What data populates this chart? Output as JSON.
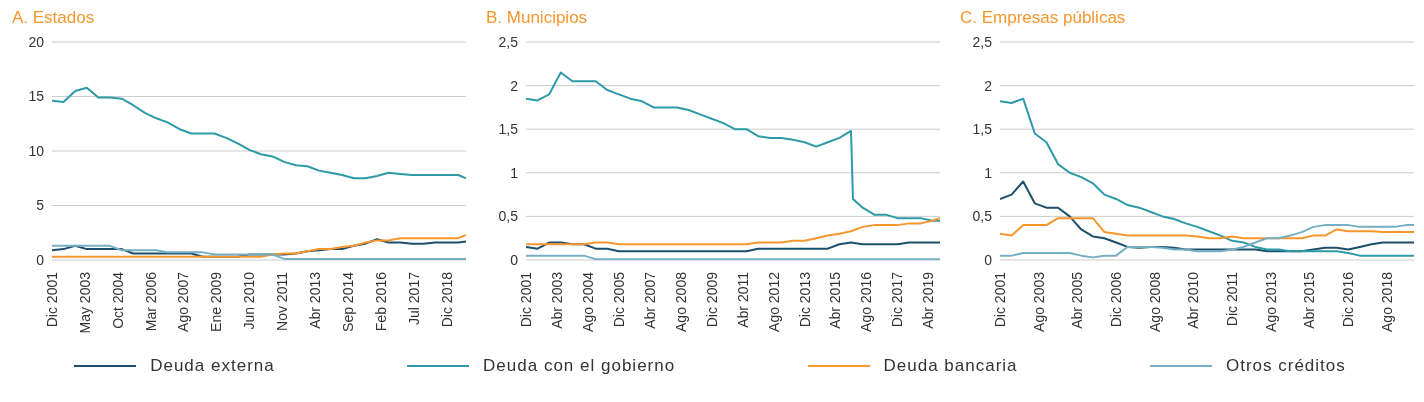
{
  "chart_data": [
    {
      "type": "line",
      "title": "A. Estados",
      "legend": "bottom",
      "grid": "y",
      "marker": "none",
      "line_style": "solid",
      "x": [
        "2001-12",
        "2002-06",
        "2002-12",
        "2003-06",
        "2003-12",
        "2004-06",
        "2004-12",
        "2005-06",
        "2005-12",
        "2006-06",
        "2006-12",
        "2007-06",
        "2007-12",
        "2008-06",
        "2008-12",
        "2009-06",
        "2009-12",
        "2010-06",
        "2010-12",
        "2011-06",
        "2011-12",
        "2012-06",
        "2012-12",
        "2013-06",
        "2013-12",
        "2014-06",
        "2014-12",
        "2015-06",
        "2015-12",
        "2016-06",
        "2016-12",
        "2017-06",
        "2017-12",
        "2018-06",
        "2018-12",
        "2019-06",
        "2019-10"
      ],
      "xlim": [
        "2001-12",
        "2019-10"
      ],
      "xticks": [
        {
          "value": "2001-12",
          "label": "Dic 2001"
        },
        {
          "value": "2003-05",
          "label": "May 2003"
        },
        {
          "value": "2004-10",
          "label": "Oct 2004"
        },
        {
          "value": "2006-03",
          "label": "Mar 2006"
        },
        {
          "value": "2007-08",
          "label": "Ago 2007"
        },
        {
          "value": "2009-01",
          "label": "Ene 2009"
        },
        {
          "value": "2010-06",
          "label": "Jun 2010"
        },
        {
          "value": "2011-11",
          "label": "Nov 2011"
        },
        {
          "value": "2013-04",
          "label": "Abr 2013"
        },
        {
          "value": "2014-09",
          "label": "Sep 2014"
        },
        {
          "value": "2016-02",
          "label": "Feb 2016"
        },
        {
          "value": "2017-07",
          "label": "Jul 2017"
        },
        {
          "value": "2018-12",
          "label": "Dic 2018"
        }
      ],
      "ylim": [
        0,
        20
      ],
      "yticks": [
        0,
        5,
        10,
        15,
        20
      ],
      "series": [
        {
          "name": "Deuda externa",
          "color": "#1b4f6b",
          "values": [
            0.9,
            1.0,
            1.3,
            1.0,
            1.0,
            1.0,
            1.0,
            0.6,
            0.6,
            0.6,
            0.6,
            0.6,
            0.6,
            0.3,
            0.3,
            0.3,
            0.3,
            0.5,
            0.5,
            0.5,
            0.5,
            0.6,
            0.8,
            0.9,
            1.0,
            1.0,
            1.3,
            1.5,
            1.9,
            1.6,
            1.6,
            1.5,
            1.5,
            1.6,
            1.6,
            1.6,
            1.7
          ]
        },
        {
          "name": "Deuda con el gobierno",
          "color": "#2e9aa8",
          "values": [
            14.6,
            14.5,
            15.5,
            15.8,
            14.9,
            14.9,
            14.8,
            14.2,
            13.5,
            13.0,
            12.6,
            12.0,
            11.6,
            11.6,
            11.6,
            11.2,
            10.7,
            10.1,
            9.7,
            9.5,
            9.0,
            8.7,
            8.6,
            8.2,
            8.0,
            7.8,
            7.5,
            7.5,
            7.7,
            8.0,
            7.9,
            7.8,
            7.8,
            7.8,
            7.8,
            7.8,
            7.5
          ]
        },
        {
          "name": "Deuda bancaria",
          "color": "#f7962d",
          "values": [
            0.3,
            0.3,
            0.3,
            0.3,
            0.3,
            0.3,
            0.3,
            0.3,
            0.3,
            0.3,
            0.3,
            0.3,
            0.3,
            0.3,
            0.3,
            0.3,
            0.3,
            0.3,
            0.3,
            0.5,
            0.6,
            0.6,
            0.8,
            1.0,
            1.0,
            1.2,
            1.3,
            1.6,
            1.8,
            1.8,
            2.0,
            2.0,
            2.0,
            2.0,
            2.0,
            2.0,
            2.3
          ]
        },
        {
          "name": "Otros créditos",
          "color": "#76afc4",
          "values": [
            1.3,
            1.3,
            1.3,
            1.3,
            1.3,
            1.3,
            0.9,
            0.9,
            0.9,
            0.9,
            0.7,
            0.7,
            0.7,
            0.7,
            0.5,
            0.5,
            0.5,
            0.5,
            0.5,
            0.5,
            0.1,
            0.1,
            0.1,
            0.1,
            0.1,
            0.1,
            0.1,
            0.1,
            0.1,
            0.1,
            0.1,
            0.1,
            0.1,
            0.1,
            0.1,
            0.1,
            0.1
          ]
        }
      ]
    },
    {
      "type": "line",
      "title": "B. Municipios",
      "grid": "y",
      "marker": "none",
      "line_style": "solid",
      "x": [
        "2001-12",
        "2002-06",
        "2002-12",
        "2003-06",
        "2003-12",
        "2004-06",
        "2004-12",
        "2005-06",
        "2005-12",
        "2006-06",
        "2006-12",
        "2007-06",
        "2007-12",
        "2008-06",
        "2008-12",
        "2009-06",
        "2009-12",
        "2010-06",
        "2010-12",
        "2011-06",
        "2011-12",
        "2012-06",
        "2012-12",
        "2013-06",
        "2013-12",
        "2014-06",
        "2014-12",
        "2015-06",
        "2015-12",
        "2016-06",
        "2016-12",
        "2017-06",
        "2017-12",
        "2018-06",
        "2018-12",
        "2019-06",
        "2019-10"
      ],
      "xlim": [
        "2001-12",
        "2019-10"
      ],
      "xticks": [
        {
          "value": "2001-12",
          "label": "Dic 2001"
        },
        {
          "value": "2003-04",
          "label": "Abr 2003"
        },
        {
          "value": "2004-08",
          "label": "Ago 2004"
        },
        {
          "value": "2005-12",
          "label": "Dic 2005"
        },
        {
          "value": "2007-04",
          "label": "Abr 2007"
        },
        {
          "value": "2008-08",
          "label": "Ago 2008"
        },
        {
          "value": "2009-12",
          "label": "Dic 2009"
        },
        {
          "value": "2011-04",
          "label": "Abr 2011"
        },
        {
          "value": "2012-08",
          "label": "Ago 2012"
        },
        {
          "value": "2013-12",
          "label": "Dic 2013"
        },
        {
          "value": "2015-04",
          "label": "Abr 2015"
        },
        {
          "value": "2016-08",
          "label": "Ago 2016"
        },
        {
          "value": "2017-12",
          "label": "Dic 2017"
        },
        {
          "value": "2019-04",
          "label": "Abr 2019"
        }
      ],
      "ylim": [
        0,
        2.5
      ],
      "yticks": [
        0,
        {
          "value": 0.5,
          "label": "0,5"
        },
        1,
        {
          "value": 1.5,
          "label": "1,5"
        },
        2,
        {
          "value": 2.5,
          "label": "2,5"
        }
      ],
      "series": [
        {
          "color": "#1b4f6b",
          "values": [
            0.15,
            0.13,
            0.2,
            0.2,
            0.18,
            0.18,
            0.13,
            0.13,
            0.1,
            0.1,
            0.1,
            0.1,
            0.1,
            0.1,
            0.1,
            0.1,
            0.1,
            0.1,
            0.1,
            0.1,
            0.13,
            0.13,
            0.13,
            0.13,
            0.13,
            0.13,
            0.13,
            0.18,
            0.2,
            0.18,
            0.18,
            0.18,
            0.18,
            0.2,
            0.2,
            0.2,
            0.2
          ]
        },
        {
          "color": "#2e9aa8",
          "x": [
            "2001-12",
            "2002-06",
            "2002-12",
            "2003-06",
            "2003-12",
            "2004-06",
            "2004-12",
            "2005-06",
            "2005-12",
            "2006-06",
            "2006-12",
            "2007-06",
            "2007-12",
            "2008-06",
            "2008-12",
            "2009-06",
            "2009-12",
            "2010-06",
            "2010-12",
            "2011-06",
            "2011-12",
            "2012-06",
            "2012-12",
            "2013-06",
            "2013-12",
            "2014-06",
            "2014-12",
            "2015-06",
            "2015-12",
            "2016-01",
            "2016-06",
            "2016-12",
            "2017-06",
            "2017-12",
            "2018-06",
            "2018-12",
            "2019-06",
            "2019-10"
          ],
          "values": [
            1.85,
            1.83,
            1.9,
            2.15,
            2.05,
            2.05,
            2.05,
            1.95,
            1.9,
            1.85,
            1.82,
            1.75,
            1.75,
            1.75,
            1.72,
            1.67,
            1.62,
            1.57,
            1.5,
            1.5,
            1.42,
            1.4,
            1.4,
            1.38,
            1.35,
            1.3,
            1.35,
            1.4,
            1.48,
            0.7,
            0.6,
            0.52,
            0.52,
            0.48,
            0.48,
            0.48,
            0.45,
            0.45
          ]
        },
        {
          "color": "#f7962d",
          "values": [
            0.18,
            0.18,
            0.18,
            0.18,
            0.18,
            0.18,
            0.2,
            0.2,
            0.18,
            0.18,
            0.18,
            0.18,
            0.18,
            0.18,
            0.18,
            0.18,
            0.18,
            0.18,
            0.18,
            0.18,
            0.2,
            0.2,
            0.2,
            0.22,
            0.22,
            0.25,
            0.28,
            0.3,
            0.33,
            0.38,
            0.4,
            0.4,
            0.4,
            0.42,
            0.42,
            0.45,
            0.48
          ]
        },
        {
          "color": "#76afc4",
          "values": [
            0.05,
            0.05,
            0.05,
            0.05,
            0.05,
            0.05,
            0.01,
            0.01,
            0.01,
            0.01,
            0.01,
            0.01,
            0.01,
            0.01,
            0.01,
            0.01,
            0.01,
            0.01,
            0.01,
            0.01,
            0.01,
            0.01,
            0.01,
            0.01,
            0.01,
            0.01,
            0.01,
            0.01,
            0.01,
            0.01,
            0.01,
            0.01,
            0.01,
            0.01,
            0.01,
            0.01,
            0.01
          ]
        }
      ]
    },
    {
      "type": "line",
      "title": "C. Empresas públicas",
      "grid": "y",
      "marker": "none",
      "line_style": "solid",
      "x": [
        "2001-12",
        "2002-06",
        "2002-12",
        "2003-06",
        "2003-12",
        "2004-06",
        "2004-12",
        "2005-06",
        "2005-12",
        "2006-06",
        "2006-12",
        "2007-06",
        "2007-12",
        "2008-06",
        "2008-12",
        "2009-06",
        "2009-12",
        "2010-06",
        "2010-12",
        "2011-06",
        "2011-12",
        "2012-06",
        "2012-12",
        "2013-06",
        "2013-12",
        "2014-06",
        "2014-12",
        "2015-06",
        "2015-12",
        "2016-06",
        "2016-12",
        "2017-06",
        "2017-12",
        "2018-06",
        "2018-12",
        "2019-06",
        "2019-10"
      ],
      "xlim": [
        "2001-12",
        "2019-10"
      ],
      "xticks": [
        {
          "value": "2001-12",
          "label": "Dic 2001"
        },
        {
          "value": "2003-08",
          "label": "Ago 2003"
        },
        {
          "value": "2005-04",
          "label": "Abr 2005"
        },
        {
          "value": "2006-12",
          "label": "Dic 2006"
        },
        {
          "value": "2008-08",
          "label": "Ago 2008"
        },
        {
          "value": "2010-04",
          "label": "Abr 2010"
        },
        {
          "value": "2011-12",
          "label": "Dic 2011"
        },
        {
          "value": "2013-08",
          "label": "Ago 2013"
        },
        {
          "value": "2015-04",
          "label": "Abr 2015"
        },
        {
          "value": "2016-12",
          "label": "Dic 2016"
        },
        {
          "value": "2018-08",
          "label": "Ago 2018"
        }
      ],
      "ylim": [
        0,
        2.5
      ],
      "yticks": [
        0,
        {
          "value": 0.5,
          "label": "0,5"
        },
        1,
        {
          "value": 1.5,
          "label": "1,5"
        },
        2,
        {
          "value": 2.5,
          "label": "2,5"
        }
      ],
      "series": [
        {
          "color": "#1b4f6b",
          "values": [
            0.7,
            0.75,
            0.9,
            0.65,
            0.6,
            0.6,
            0.5,
            0.35,
            0.27,
            0.25,
            0.2,
            0.15,
            0.14,
            0.15,
            0.15,
            0.14,
            0.12,
            0.12,
            0.12,
            0.12,
            0.12,
            0.12,
            0.12,
            0.1,
            0.1,
            0.1,
            0.1,
            0.12,
            0.14,
            0.14,
            0.12,
            0.15,
            0.18,
            0.2,
            0.2,
            0.2,
            0.2
          ]
        },
        {
          "color": "#2e9aa8",
          "values": [
            1.82,
            1.8,
            1.85,
            1.45,
            1.35,
            1.1,
            1.0,
            0.95,
            0.88,
            0.75,
            0.7,
            0.63,
            0.6,
            0.55,
            0.5,
            0.47,
            0.42,
            0.38,
            0.33,
            0.28,
            0.22,
            0.2,
            0.15,
            0.12,
            0.12,
            0.1,
            0.1,
            0.1,
            0.1,
            0.1,
            0.08,
            0.05,
            0.05,
            0.05,
            0.05,
            0.05,
            0.05
          ]
        },
        {
          "color": "#f7962d",
          "values": [
            0.3,
            0.28,
            0.4,
            0.4,
            0.4,
            0.48,
            0.48,
            0.48,
            0.48,
            0.32,
            0.3,
            0.28,
            0.28,
            0.28,
            0.28,
            0.28,
            0.28,
            0.27,
            0.25,
            0.25,
            0.27,
            0.25,
            0.25,
            0.25,
            0.25,
            0.25,
            0.25,
            0.28,
            0.28,
            0.35,
            0.33,
            0.33,
            0.33,
            0.32,
            0.32,
            0.32,
            0.32
          ]
        },
        {
          "color": "#76afc4",
          "values": [
            0.05,
            0.05,
            0.08,
            0.08,
            0.08,
            0.08,
            0.08,
            0.05,
            0.03,
            0.05,
            0.05,
            0.15,
            0.15,
            0.15,
            0.14,
            0.12,
            0.12,
            0.1,
            0.1,
            0.1,
            0.12,
            0.15,
            0.2,
            0.25,
            0.25,
            0.28,
            0.32,
            0.38,
            0.4,
            0.4,
            0.4,
            0.38,
            0.38,
            0.38,
            0.38,
            0.4,
            0.4
          ]
        }
      ]
    }
  ]
}
